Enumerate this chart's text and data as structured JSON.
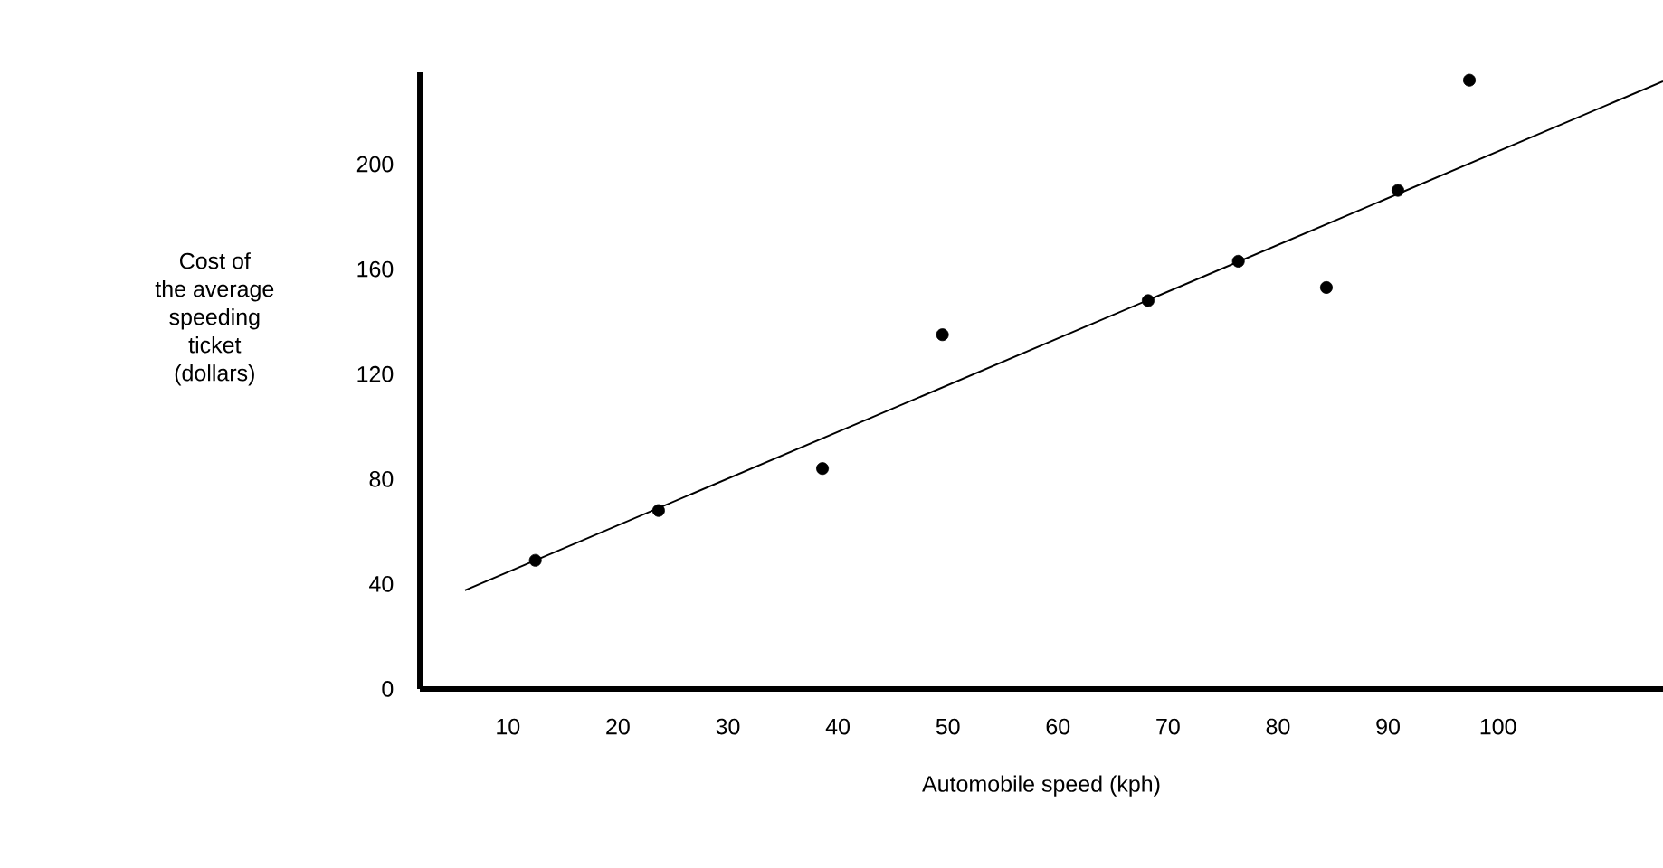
{
  "chart_data": {
    "type": "scatter",
    "xlabel": "Automobile speed (kph)",
    "ylabel": "Cost of\nthe average\nspeeding\nticket\n(dollars)",
    "xlim": [
      2,
      115
    ],
    "ylim": [
      0,
      235
    ],
    "xticks": [
      10,
      20,
      30,
      40,
      50,
      60,
      70,
      80,
      90,
      100
    ],
    "yticks": [
      0,
      40,
      80,
      120,
      160,
      200
    ],
    "series": [
      {
        "marker": "circle",
        "color": "#000000",
        "x": [
          12.5,
          23.7,
          38.6,
          49.5,
          68.2,
          76.4,
          84.4,
          90.9,
          97.4
        ],
        "values": [
          49,
          68,
          84,
          135,
          148,
          163,
          153,
          190,
          232
        ]
      },
      {
        "type": "line",
        "color": "#000000",
        "marker": "none",
        "line_style": "solid",
        "x": [
          6.1,
          115
        ],
        "values": [
          37.6,
          231.6
        ]
      }
    ]
  }
}
